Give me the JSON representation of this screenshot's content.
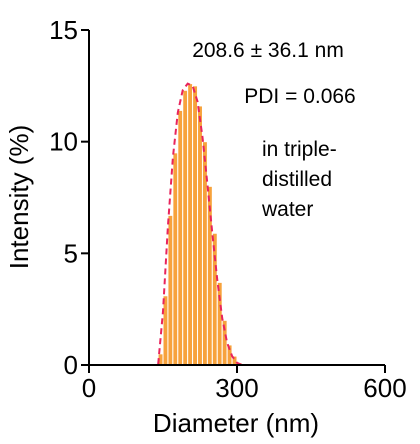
{
  "chart_data": {
    "type": "bar",
    "title": "",
    "xlabel": "Diameter (nm)",
    "ylabel": "Intensity (%)",
    "xlim": [
      0,
      600
    ],
    "ylim": [
      0,
      15
    ],
    "xticks": [
      0,
      300,
      600
    ],
    "yticks": [
      0,
      5,
      10,
      15
    ],
    "bin_width": 10,
    "bar_color": "#f7a23c",
    "bar_edge_color": "#ffffff",
    "fit_color": "#e8245c",
    "bins": [
      {
        "x": 140,
        "y": 0.5
      },
      {
        "x": 150,
        "y": 3.1
      },
      {
        "x": 160,
        "y": 6.7
      },
      {
        "x": 170,
        "y": 9.5
      },
      {
        "x": 180,
        "y": 11.4
      },
      {
        "x": 190,
        "y": 12.3
      },
      {
        "x": 200,
        "y": 12.6
      },
      {
        "x": 210,
        "y": 12.5
      },
      {
        "x": 220,
        "y": 11.6
      },
      {
        "x": 230,
        "y": 10.0
      },
      {
        "x": 240,
        "y": 8.0
      },
      {
        "x": 250,
        "y": 5.9
      },
      {
        "x": 260,
        "y": 3.7
      },
      {
        "x": 270,
        "y": 2.0
      },
      {
        "x": 280,
        "y": 0.9
      },
      {
        "x": 290,
        "y": 0.4
      },
      {
        "x": 300,
        "y": 0.1
      }
    ],
    "fit": {
      "x": [
        0,
        140,
        150,
        160,
        170,
        180,
        190,
        200,
        210,
        220,
        230,
        240,
        250,
        260,
        270,
        280,
        290,
        300,
        310,
        320,
        500
      ],
      "y": [
        0,
        0,
        2.4,
        6.2,
        9.3,
        11.3,
        12.3,
        12.6,
        12.5,
        11.8,
        10.2,
        8.1,
        5.9,
        3.8,
        2.1,
        1.0,
        0.4,
        0.1,
        0,
        0,
        0
      ]
    },
    "annotations": {
      "size": "208.6 ± 36.1 nm",
      "pdi": "PDI = 0.066",
      "medium_line1": "in triple-",
      "medium_line2": "distilled",
      "medium_line3": "water"
    }
  }
}
